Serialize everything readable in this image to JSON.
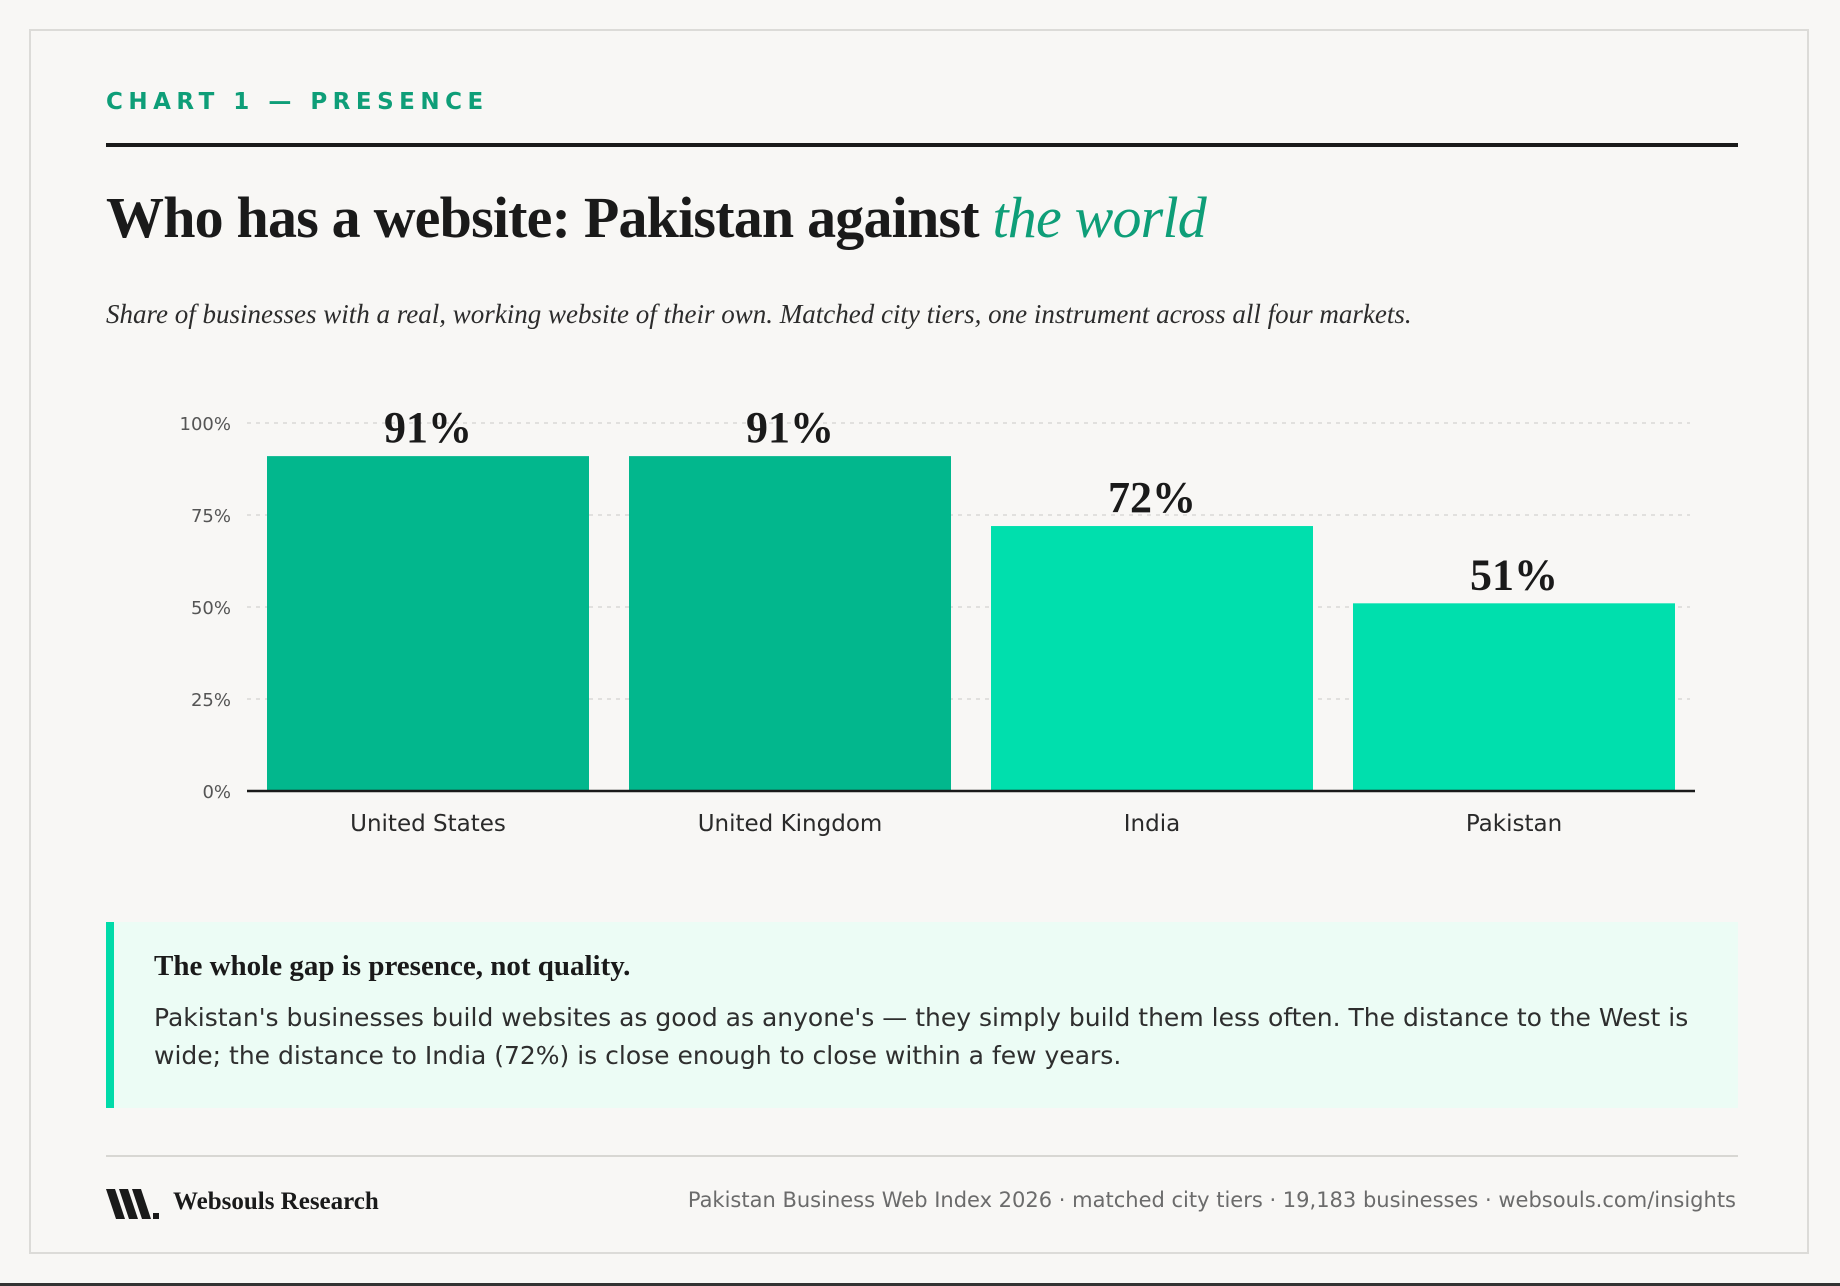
{
  "header": {
    "eyebrow": "CHART 1 — PRESENCE",
    "title_main": "Who has a website: Pakistan against ",
    "title_accent": "the world",
    "subtitle": "Share of businesses with a real, working website of their own. Matched city tiers, one instrument across all four markets."
  },
  "chart_data": {
    "type": "bar",
    "categories": [
      "United States",
      "United Kingdom",
      "India",
      "Pakistan"
    ],
    "values": [
      91,
      91,
      72,
      51
    ],
    "value_labels": [
      "91%",
      "91%",
      "72%",
      "51%"
    ],
    "bar_colors": [
      "#02b78d",
      "#02b78d",
      "#00dfad",
      "#00dfad"
    ],
    "ylim": [
      0,
      100
    ],
    "yticks": [
      0,
      25,
      50,
      75,
      100
    ],
    "ytick_labels": [
      "0%",
      "25%",
      "50%",
      "75%",
      "100%"
    ],
    "grid": true,
    "xlabel": "",
    "ylabel": ""
  },
  "callout": {
    "heading": "The whole gap is presence, not quality.",
    "body": "Pakistan's businesses build websites as good as anyone's — they simply build them less often. The distance to the West is wide; the distance to India (72%) is close enough to close within a few years."
  },
  "footer": {
    "brand": "Websouls Research",
    "meta": "Pakistan Business Web Index 2026 · matched city tiers · 19,183 businesses · websouls.com/insights"
  },
  "colors": {
    "accent": "#0e9e78",
    "bar_dark": "#02b78d",
    "bar_light": "#00dfad",
    "callout_bg": "#ecfcf5"
  }
}
